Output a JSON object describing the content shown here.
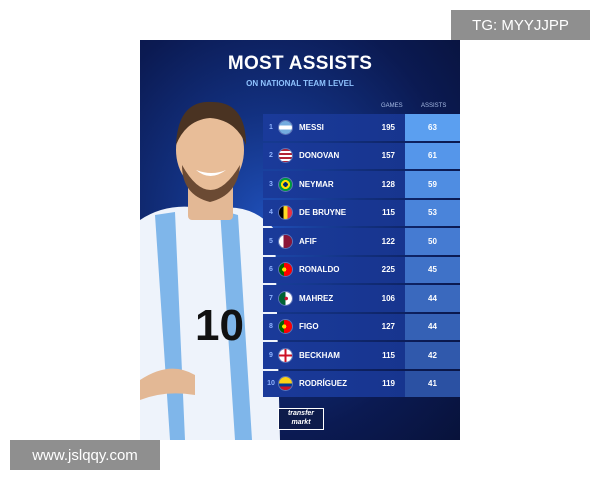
{
  "poster": {
    "title": "MOST ASSISTS",
    "subtitle": "ON NATIONAL TEAM LEVEL",
    "columns": {
      "games": "GAMES",
      "assists": "ASSISTS"
    },
    "rows": [
      {
        "rank": "1",
        "name": "MESSI",
        "games": "195",
        "assists": "63",
        "flag": "argentina"
      },
      {
        "rank": "2",
        "name": "DONOVAN",
        "games": "157",
        "assists": "61",
        "flag": "usa"
      },
      {
        "rank": "3",
        "name": "NEYMAR",
        "games": "128",
        "assists": "59",
        "flag": "brazil"
      },
      {
        "rank": "4",
        "name": "DE BRUYNE",
        "games": "115",
        "assists": "53",
        "flag": "belgium"
      },
      {
        "rank": "5",
        "name": "AFIF",
        "games": "122",
        "assists": "50",
        "flag": "qatar"
      },
      {
        "rank": "6",
        "name": "RONALDO",
        "games": "225",
        "assists": "45",
        "flag": "portugal"
      },
      {
        "rank": "7",
        "name": "MAHREZ",
        "games": "106",
        "assists": "44",
        "flag": "algeria"
      },
      {
        "rank": "8",
        "name": "FIGO",
        "games": "127",
        "assists": "44",
        "flag": "portugal"
      },
      {
        "rank": "9",
        "name": "BECKHAM",
        "games": "115",
        "assists": "42",
        "flag": "england"
      },
      {
        "rank": "10",
        "name": "RODRÍGUEZ",
        "games": "119",
        "assists": "41",
        "flag": "colombia"
      }
    ],
    "logo": "transfermarkt",
    "jersey_number": "10"
  },
  "watermarks": {
    "top_right": "TG: MYYJJPP",
    "bottom_left": "www.jslqqy.com"
  }
}
